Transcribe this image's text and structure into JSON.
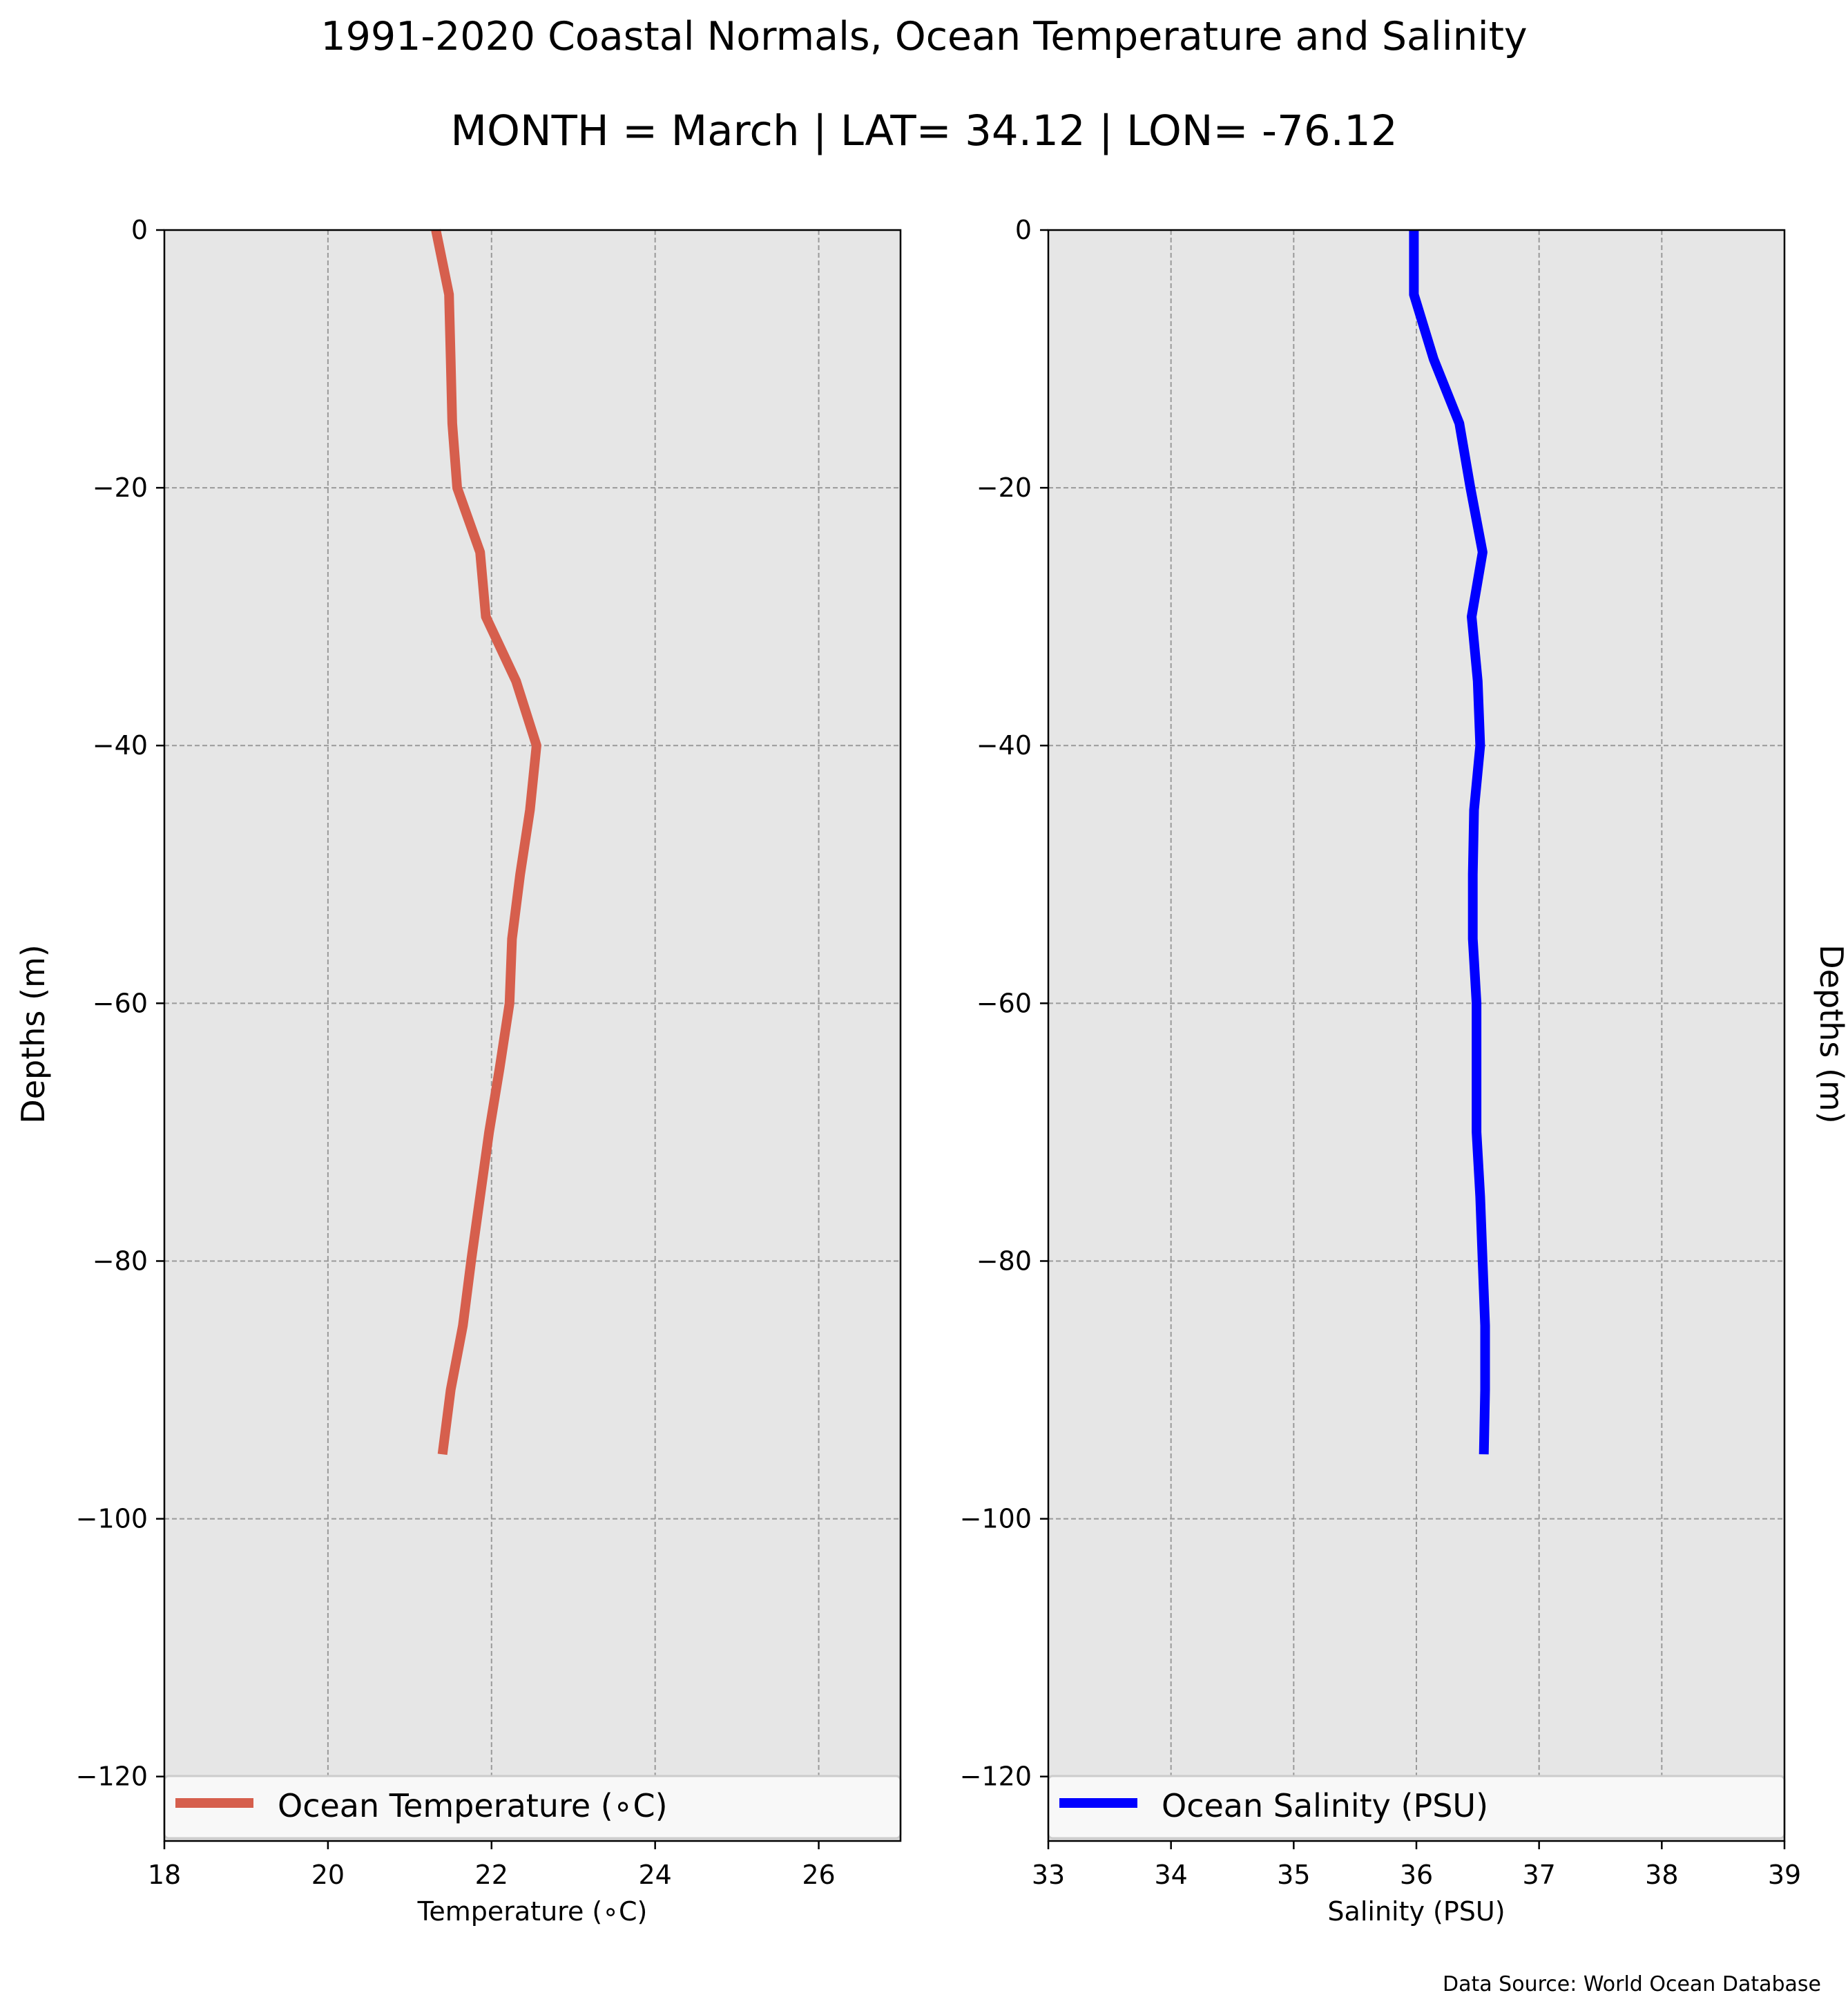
{
  "figure": {
    "title": "1991-2020 Coastal Normals, Ocean Temperature and Salinity",
    "subtitle": "MONTH = March | LAT= 34.12 | LON= -76.12",
    "source_note": "Data Source: World Ocean Database"
  },
  "colors": {
    "plot_background": "#e6e6e6",
    "grid": "#9a9a9a",
    "temperature_line": "#d65f4d",
    "salinity_line": "#0000ff"
  },
  "chart_data": [
    {
      "type": "line",
      "xlabel": "Temperature (∘C)",
      "ylabel": "Depths (m)",
      "xlim": [
        18,
        27
      ],
      "ylim": [
        -125,
        0
      ],
      "xticks": [
        18,
        20,
        22,
        24,
        26
      ],
      "xtick_labels": [
        "18",
        "20",
        "22",
        "24",
        "26"
      ],
      "yticks": [
        0,
        -20,
        -40,
        -60,
        -80,
        -100,
        -120
      ],
      "ytick_labels": [
        "0",
        "−20",
        "−40",
        "−60",
        "−80",
        "−100",
        "−120"
      ],
      "grid": true,
      "legend_position": "lower center",
      "series": [
        {
          "name": "Ocean Temperature (∘C)",
          "color": "#d65f4d",
          "x": [
            21.32,
            21.48,
            21.5,
            21.52,
            21.58,
            21.86,
            21.93,
            22.3,
            22.55,
            22.47,
            22.35,
            22.25,
            22.22,
            22.1,
            21.97,
            21.86,
            21.75,
            21.65,
            21.5,
            21.4
          ],
          "y": [
            0,
            -5,
            -10,
            -15,
            -20,
            -25,
            -30,
            -35,
            -40,
            -45,
            -50,
            -55,
            -60,
            -65,
            -70,
            -75,
            -80,
            -85,
            -90,
            -95
          ]
        }
      ]
    },
    {
      "type": "line",
      "xlabel": "Salinity (PSU)",
      "ylabel": "Depths (m)",
      "xlim": [
        33,
        39
      ],
      "ylim": [
        -125,
        0
      ],
      "xticks": [
        33,
        34,
        35,
        36,
        37,
        38,
        39
      ],
      "xtick_labels": [
        "33",
        "34",
        "35",
        "36",
        "37",
        "38",
        "39"
      ],
      "yticks": [
        0,
        -20,
        -40,
        -60,
        -80,
        -100,
        -120
      ],
      "ytick_labels": [
        "0",
        "−20",
        "−40",
        "−60",
        "−80",
        "−100",
        "−120"
      ],
      "grid": true,
      "legend_position": "lower center",
      "series": [
        {
          "name": "Ocean Salinity (PSU)",
          "color": "#0000ff",
          "x": [
            35.98,
            35.98,
            36.14,
            36.35,
            36.44,
            36.54,
            36.45,
            36.5,
            36.52,
            36.47,
            36.46,
            36.46,
            36.49,
            36.49,
            36.49,
            36.52,
            36.54,
            36.56,
            36.56,
            36.55
          ],
          "y": [
            0,
            -5,
            -10,
            -15,
            -20,
            -25,
            -30,
            -35,
            -40,
            -45,
            -50,
            -55,
            -60,
            -65,
            -70,
            -75,
            -80,
            -85,
            -90,
            -95
          ]
        }
      ]
    }
  ]
}
